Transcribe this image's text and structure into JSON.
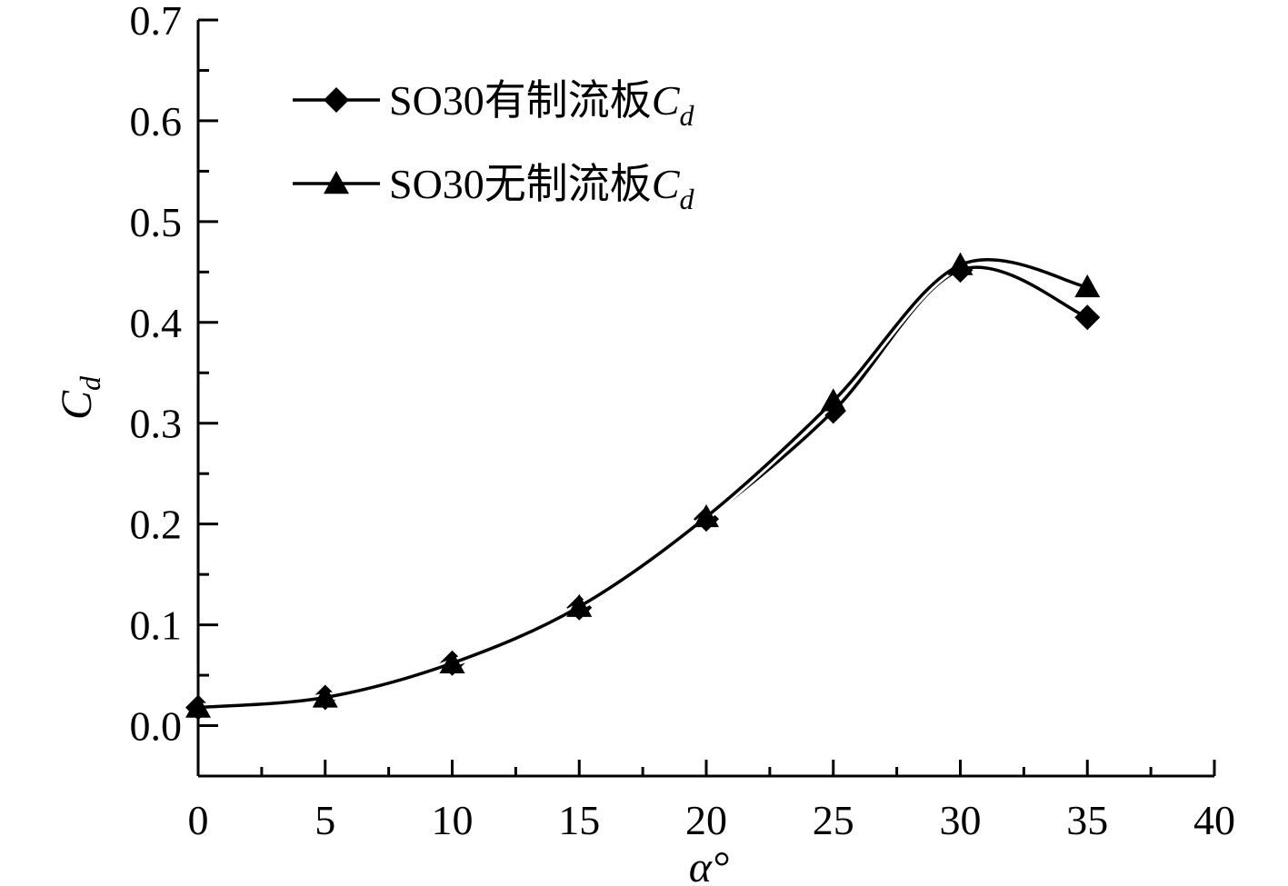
{
  "chart_data": {
    "type": "line",
    "xlabel": "α°",
    "ylabel": "Cd",
    "xlim": [
      0,
      40
    ],
    "ylim": [
      -0.05,
      0.7
    ],
    "x_ticks": [
      0,
      5,
      10,
      15,
      20,
      25,
      30,
      35,
      40
    ],
    "x_tick_labels": [
      "0",
      "5",
      "10",
      "15",
      "20",
      "25",
      "30",
      "35",
      "40"
    ],
    "y_ticks": [
      0.0,
      0.1,
      0.2,
      0.3,
      0.4,
      0.5,
      0.6,
      0.7
    ],
    "y_tick_labels": [
      "0.0",
      "0.1",
      "0.2",
      "0.3",
      "0.4",
      "0.5",
      "0.6",
      "0.7"
    ],
    "grid": false,
    "legend_position": "top-left",
    "series": [
      {
        "name": "SO30有制流板Cd",
        "label_text": "SO30有制流板",
        "label_symbol": "C",
        "label_subscript": "d",
        "marker": "diamond",
        "x": [
          0,
          5,
          10,
          15,
          20,
          25,
          30,
          35
        ],
        "values": [
          0.018,
          0.028,
          0.062,
          0.117,
          0.205,
          0.312,
          0.452,
          0.405
        ]
      },
      {
        "name": "SO30无制流板Cd",
        "label_text": "SO30无制流板",
        "label_symbol": "C",
        "label_subscript": "d",
        "marker": "triangle",
        "x": [
          0,
          5,
          10,
          15,
          20,
          25,
          30,
          35
        ],
        "values": [
          0.018,
          0.028,
          0.062,
          0.118,
          0.207,
          0.322,
          0.457,
          0.435
        ]
      }
    ],
    "colors": {
      "line": "#000000",
      "axis": "#000000"
    }
  }
}
